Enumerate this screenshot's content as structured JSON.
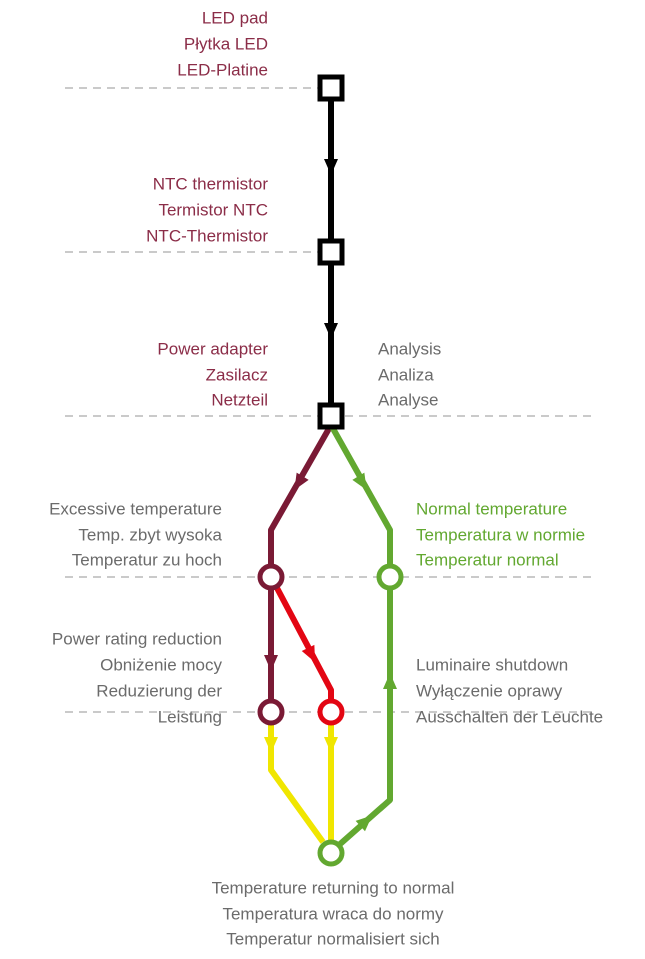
{
  "nodes": [
    {
      "label": [
        "LED pad",
        "Płytka LED",
        "LED-Platine"
      ]
    },
    {
      "label": [
        "NTC thermistor",
        "Termistor NTC",
        "NTC-Thermistor"
      ]
    },
    {
      "label": [
        "Power adapter",
        "Zasilacz",
        "Netzteil"
      ]
    },
    {
      "label": [
        "Analysis",
        "Analiza",
        "Analyse"
      ]
    },
    {
      "label": [
        "Excessive temperature",
        "Temp. zbyt wysoka",
        "Temperatur zu hoch"
      ]
    },
    {
      "label": [
        "Normal temperature",
        "Temperatura w normie",
        "Temperatur normal"
      ]
    },
    {
      "label": [
        "Power rating reduction",
        "Obniżenie mocy",
        "Reduzierung der",
        "Leistung"
      ]
    },
    {
      "label": [
        "Luminaire shutdown",
        "Wyłączenie oprawy",
        "Ausschalten der Leuchte"
      ]
    },
    {
      "label": [
        "Temperature returning to normal",
        "Temperatura wraca do normy",
        "Temperatur normalisiert sich"
      ]
    }
  ]
}
